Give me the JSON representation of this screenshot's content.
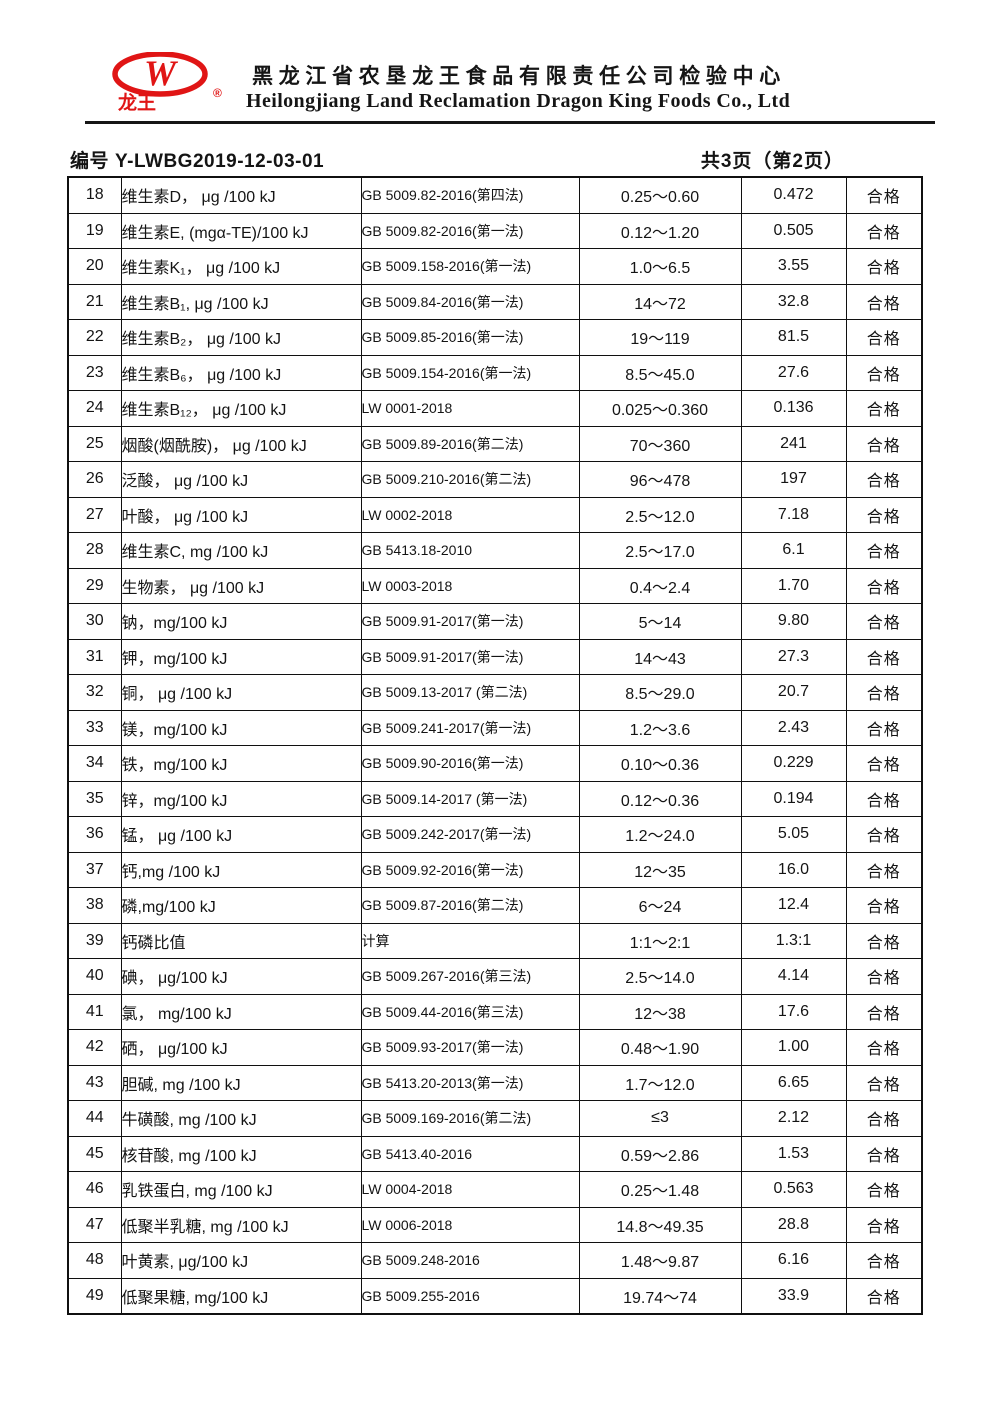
{
  "header": {
    "logo_monogram": "W",
    "logo_text": "龙王",
    "registered_mark": "®",
    "brand_color": "#e01515",
    "title_cn": "黑龙江省农垦龙王食品有限责任公司检验中心",
    "title_en": "Heilongjiang Land Reclamation Dragon King Foods Co., Ltd"
  },
  "meta": {
    "report_no_label": "编号",
    "report_no": "Y-LWBG2019-12-03-01",
    "page_info": "共3页（第2页）"
  },
  "table": {
    "rows": [
      {
        "no": "18",
        "item": "维生素D， μg /100 kJ",
        "method": "GB 5009.82-2016(第四法)",
        "range": "0.25～0.60",
        "result": "0.472",
        "verdict": "合格"
      },
      {
        "no": "19",
        "item": "维生素E, (mgα-TE)/100 kJ",
        "method": "GB 5009.82-2016(第一法)",
        "range": "0.12～1.20",
        "result": "0.505",
        "verdict": "合格"
      },
      {
        "no": "20",
        "item": "维生素K₁， μg /100 kJ",
        "method": "GB 5009.158-2016(第一法)",
        "range": "1.0～6.5",
        "result": "3.55",
        "verdict": "合格"
      },
      {
        "no": "21",
        "item": "维生素B₁, μg /100 kJ",
        "method": "GB 5009.84-2016(第一法)",
        "range": "14～72",
        "result": "32.8",
        "verdict": "合格"
      },
      {
        "no": "22",
        "item": "维生素B₂， μg /100 kJ",
        "method": "GB 5009.85-2016(第一法)",
        "range": "19～119",
        "result": "81.5",
        "verdict": "合格"
      },
      {
        "no": "23",
        "item": "维生素B₆， μg /100 kJ",
        "method": "GB 5009.154-2016(第一法)",
        "range": "8.5～45.0",
        "result": "27.6",
        "verdict": "合格"
      },
      {
        "no": "24",
        "item": "维生素B₁₂， μg /100 kJ",
        "method": "LW 0001-2018",
        "range": "0.025～0.360",
        "result": "0.136",
        "verdict": "合格"
      },
      {
        "no": "25",
        "item": "烟酸(烟酰胺)， μg /100 kJ",
        "method": "GB 5009.89-2016(第二法)",
        "range": "70～360",
        "result": "241",
        "verdict": "合格"
      },
      {
        "no": "26",
        "item": "泛酸， μg /100 kJ",
        "method": "GB 5009.210-2016(第二法)",
        "range": "96～478",
        "result": "197",
        "verdict": "合格"
      },
      {
        "no": "27",
        "item": "叶酸， μg /100 kJ",
        "method": "LW 0002-2018",
        "range": "2.5～12.0",
        "result": "7.18",
        "verdict": "合格"
      },
      {
        "no": "28",
        "item": "维生素C, mg /100 kJ",
        "method": "GB 5413.18-2010",
        "range": "2.5～17.0",
        "result": "6.1",
        "verdict": "合格"
      },
      {
        "no": "29",
        "item": "生物素， μg /100 kJ",
        "method": "LW 0003-2018",
        "range": "0.4～2.4",
        "result": "1.70",
        "verdict": "合格"
      },
      {
        "no": "30",
        "item": "钠，mg/100 kJ",
        "method": "GB 5009.91-2017(第一法)",
        "range": "5～14",
        "result": "9.80",
        "verdict": "合格"
      },
      {
        "no": "31",
        "item": "钾，mg/100 kJ",
        "method": "GB 5009.91-2017(第一法)",
        "range": "14～43",
        "result": "27.3",
        "verdict": "合格"
      },
      {
        "no": "32",
        "item": "铜， μg /100 kJ",
        "method": "GB 5009.13-2017 (第二法)",
        "range": "8.5～29.0",
        "result": "20.7",
        "verdict": "合格"
      },
      {
        "no": "33",
        "item": "镁，mg/100 kJ",
        "method": "GB 5009.241-2017(第一法)",
        "range": "1.2～3.6",
        "result": "2.43",
        "verdict": "合格"
      },
      {
        "no": "34",
        "item": "铁，mg/100 kJ",
        "method": "GB 5009.90-2016(第一法)",
        "range": "0.10～0.36",
        "result": "0.229",
        "verdict": "合格"
      },
      {
        "no": "35",
        "item": "锌，mg/100 kJ",
        "method": "GB 5009.14-2017  (第一法)",
        "range": "0.12～0.36",
        "result": "0.194",
        "verdict": "合格"
      },
      {
        "no": "36",
        "item": "锰， μg /100 kJ",
        "method": "GB 5009.242-2017(第一法)",
        "range": "1.2～24.0",
        "result": "5.05",
        "verdict": "合格"
      },
      {
        "no": "37",
        "item": "钙,mg /100 kJ",
        "method": "GB 5009.92-2016(第一法)",
        "range": "12～35",
        "result": "16.0",
        "verdict": "合格"
      },
      {
        "no": "38",
        "item": "磷,mg/100 kJ",
        "method": "GB 5009.87-2016(第二法)",
        "range": "6～24",
        "result": "12.4",
        "verdict": "合格"
      },
      {
        "no": "39",
        "item": "钙磷比值",
        "method": "计算",
        "range": "1:1～2:1",
        "result": "1.3:1",
        "verdict": "合格"
      },
      {
        "no": "40",
        "item": "碘， μg/100 kJ",
        "method": "GB 5009.267-2016(第三法)",
        "range": "2.5～14.0",
        "result": "4.14",
        "verdict": "合格"
      },
      {
        "no": "41",
        "item": "氯， mg/100 kJ",
        "method": "GB 5009.44-2016(第三法)",
        "range": "12～38",
        "result": "17.6",
        "verdict": "合格"
      },
      {
        "no": "42",
        "item": "硒， μg/100 kJ",
        "method": "GB 5009.93-2017(第一法)",
        "range": "0.48～1.90",
        "result": "1.00",
        "verdict": "合格"
      },
      {
        "no": "43",
        "item": "胆碱, mg /100 kJ",
        "method": "GB 5413.20-2013(第一法)",
        "range": "1.7～12.0",
        "result": "6.65",
        "verdict": "合格"
      },
      {
        "no": "44",
        "item": "牛磺酸, mg /100 kJ",
        "method": "GB 5009.169-2016(第二法)",
        "range": "≤3",
        "result": "2.12",
        "verdict": "合格"
      },
      {
        "no": "45",
        "item": "核苷酸, mg /100 kJ",
        "method": "GB 5413.40-2016",
        "range": "0.59～2.86",
        "result": "1.53",
        "verdict": "合格"
      },
      {
        "no": "46",
        "item": "乳铁蛋白, mg /100 kJ",
        "method": "LW 0004-2018",
        "range": "0.25～1.48",
        "result": "0.563",
        "verdict": "合格"
      },
      {
        "no": "47",
        "item": "低聚半乳糖, mg /100 kJ",
        "method": "LW 0006-2018",
        "range": "14.8～49.35",
        "result": "28.8",
        "verdict": "合格"
      },
      {
        "no": "48",
        "item": "叶黄素, μg/100 kJ",
        "method": "GB 5009.248-2016",
        "range": "1.48～9.87",
        "result": "6.16",
        "verdict": "合格"
      },
      {
        "no": "49",
        "item": "低聚果糖, mg/100 kJ",
        "method": "GB 5009.255-2016",
        "range": "19.74～74",
        "result": "33.9",
        "verdict": "合格"
      }
    ]
  }
}
